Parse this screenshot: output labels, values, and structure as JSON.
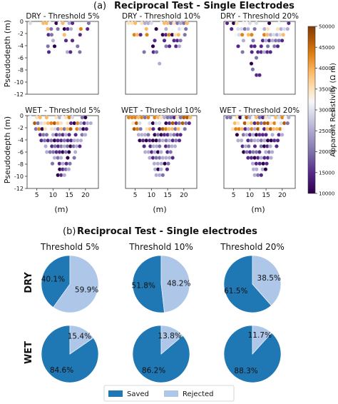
{
  "part_a": {
    "label": "(a)",
    "title": "Reciprocal Test - Single Electrodes",
    "ylabel": "Pseudodepth (m)",
    "xlabel": "(m)",
    "x_ticks": [
      "5",
      "10",
      "15",
      "20"
    ],
    "y_ticks": [
      "0",
      "-2",
      "-4",
      "-6",
      "-8",
      "-10",
      "-12"
    ],
    "colorbar": {
      "label": "Apparent Resistivity (Ω m)",
      "ticks": [
        "10000",
        "15000",
        "20000",
        "25000",
        "30000",
        "35000",
        "40000",
        "45000",
        "50000"
      ],
      "range": [
        10000,
        50000
      ],
      "colors": [
        "#2d004b",
        "#542788",
        "#8073ac",
        "#b2abd2",
        "#d8daeb",
        "#f7f7f7",
        "#fee0b6",
        "#fdb863",
        "#e08214",
        "#b35806",
        "#7f3b08"
      ]
    },
    "panels": [
      {
        "title": "DRY - Threshold 5%",
        "condition": "dry",
        "keep": 0.4
      },
      {
        "title": "DRY - Threshold 10%",
        "condition": "dry",
        "keep": 0.52
      },
      {
        "title": "DRY - Threshold 20%",
        "condition": "dry",
        "keep": 0.62
      },
      {
        "title": "WET - Threshold 5%",
        "condition": "wet",
        "keep": 0.85
      },
      {
        "title": "WET - Threshold 10%",
        "condition": "wet",
        "keep": 0.86
      },
      {
        "title": "WET - Threshold 20%",
        "condition": "wet",
        "keep": 0.88
      }
    ]
  },
  "part_b": {
    "label": "(b)",
    "title": "Reciprocal Test - Single electrodes",
    "row_labels": [
      "DRY",
      "WET"
    ],
    "column_titles": [
      "Threshold 5%",
      "Threshold 10%",
      "Threshold 20%"
    ],
    "legend": [
      "Saved",
      "Rejected"
    ],
    "colors": {
      "saved": "#1f77b4",
      "rejected": "#aec7e8"
    }
  },
  "chart_data": [
    {
      "type": "heatmap",
      "title": "Reciprocal Test - Single Electrodes",
      "xlabel": "(m)",
      "ylabel": "Pseudodepth (m)",
      "xlim": [
        2,
        24
      ],
      "ylim": [
        -12,
        0
      ],
      "colorbar_range": [
        10000,
        50000
      ],
      "panels": [
        "DRY - Threshold 5%",
        "DRY - Threshold 10%",
        "DRY - Threshold 20%",
        "WET - Threshold 5%",
        "WET - Threshold 10%",
        "WET - Threshold 20%"
      ]
    },
    {
      "type": "pie",
      "title": "Reciprocal Test - Single electrodes",
      "series": [
        {
          "row": "DRY",
          "column": "Threshold 5%",
          "saved": 40.1,
          "rejected": 59.9,
          "saved_label": "40.1%",
          "rejected_label": "59.9%"
        },
        {
          "row": "DRY",
          "column": "Threshold 10%",
          "saved": 51.8,
          "rejected": 48.2,
          "saved_label": "51.8%",
          "rejected_label": "48.2%"
        },
        {
          "row": "DRY",
          "column": "Threshold 20%",
          "saved": 61.5,
          "rejected": 38.5,
          "saved_label": "61.5%",
          "rejected_label": "38.5%"
        },
        {
          "row": "WET",
          "column": "Threshold 5%",
          "saved": 84.6,
          "rejected": 15.4,
          "saved_label": "84.6%",
          "rejected_label": "15.4%"
        },
        {
          "row": "WET",
          "column": "Threshold 10%",
          "saved": 86.2,
          "rejected": 13.8,
          "saved_label": "86.2%",
          "rejected_label": "13.8%"
        },
        {
          "row": "WET",
          "column": "Threshold 20%",
          "saved": 88.3,
          "rejected": 11.7,
          "saved_label": "88.3%",
          "rejected_label": "11.7%"
        }
      ],
      "legend": [
        "Saved",
        "Rejected"
      ]
    }
  ]
}
